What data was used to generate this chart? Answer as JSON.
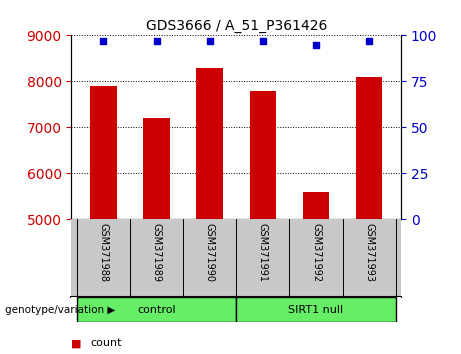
{
  "title": "GDS3666 / A_51_P361426",
  "samples": [
    "GSM371988",
    "GSM371989",
    "GSM371990",
    "GSM371991",
    "GSM371992",
    "GSM371993"
  ],
  "counts": [
    7900,
    7200,
    8300,
    7800,
    5600,
    8100
  ],
  "percentile_ranks": [
    97,
    97,
    97,
    97,
    95,
    97
  ],
  "ylim_left": [
    5000,
    9000
  ],
  "ylim_right": [
    0,
    100
  ],
  "yticks_left": [
    5000,
    6000,
    7000,
    8000,
    9000
  ],
  "yticks_right": [
    0,
    25,
    50,
    75,
    100
  ],
  "bar_color": "#cc0000",
  "dot_color": "#0000cc",
  "group_label_color": "#c8c8c8",
  "group_box_color": "#c8c8c8",
  "group_green_color": "#66ee66",
  "legend_count_color": "#cc0000",
  "legend_dot_color": "#0000cc",
  "background_color": "#ffffff",
  "plot_bg_color": "#ffffff",
  "left_tick_color": "#cc0000",
  "right_tick_color": "#0000cc",
  "genotype_label": "genotype/variation"
}
